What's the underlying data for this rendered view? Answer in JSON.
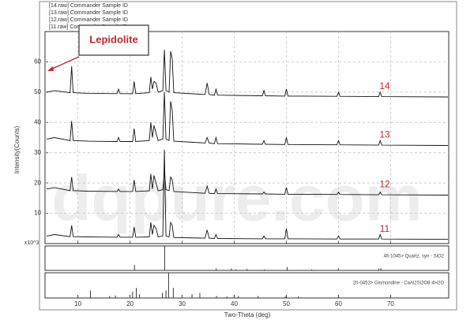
{
  "chart_data": {
    "type": "line",
    "x_label": "Two-Theta (deg)",
    "y_label": "Intensity(Counts)",
    "y_unit_label": "x10^3",
    "annotation": "Lepidolite",
    "watermark": "dqpure.com",
    "xlim": [
      4,
      81
    ],
    "ylim": [
      0,
      70
    ],
    "xticks": [
      10,
      20,
      30,
      40,
      50,
      60,
      70
    ],
    "yticks": [
      10,
      20,
      30,
      40,
      50,
      60
    ],
    "grid": true,
    "x": [
      4,
      5.5,
      8.5,
      8.8,
      9.1,
      12,
      17.5,
      17.8,
      18.1,
      20.5,
      20.8,
      21.1,
      23.7,
      24.0,
      24.3,
      24.6,
      25.0,
      25.4,
      26.3,
      26.6,
      26.9,
      27.5,
      27.8,
      28.1,
      28.4,
      34.4,
      34.8,
      35.2,
      36.2,
      36.5,
      36.8,
      45.4,
      45.7,
      46.0,
      49.7,
      50.0,
      50.3,
      59.7,
      60.0,
      60.3,
      67.7,
      68.0,
      68.3,
      81
    ],
    "series": [
      {
        "name": "14",
        "legend_label": "[14.raw] Commander Sample ID",
        "color": "#111111",
        "values": [
          50,
          50.5,
          49.8,
          58.5,
          49.8,
          49.6,
          49.5,
          51,
          49.5,
          49.5,
          53.5,
          49.5,
          49.8,
          55,
          51,
          53.5,
          53,
          50,
          50.5,
          64,
          50.5,
          50,
          63.5,
          61,
          49.8,
          49.2,
          53,
          49.2,
          49,
          51,
          49,
          48.8,
          50.5,
          48.8,
          48.7,
          51,
          48.7,
          48.6,
          50,
          48.6,
          48.5,
          50,
          48.5,
          48.4
        ]
      },
      {
        "name": "13",
        "legend_label": "[13.raw] Commander Sample ID",
        "color": "#111111",
        "values": [
          34.5,
          35,
          34,
          40.5,
          34,
          33.8,
          33.7,
          35,
          33.7,
          33.7,
          38,
          33.7,
          34,
          40,
          35,
          39,
          36.5,
          34,
          34.5,
          50,
          34.5,
          34,
          47,
          44,
          33.8,
          33.2,
          35,
          33.2,
          33,
          35,
          33,
          32.8,
          34,
          32.8,
          32.7,
          35,
          32.7,
          32.6,
          34,
          32.6,
          32.5,
          34,
          32.5,
          32.4
        ]
      },
      {
        "name": "12",
        "legend_label": "[12.raw] Commander Sample ID",
        "color": "#111111",
        "values": [
          18,
          18.5,
          17.5,
          22,
          17.5,
          17.3,
          17.2,
          18,
          17.2,
          17.2,
          21,
          17.2,
          17.4,
          23,
          18,
          22.5,
          20,
          17.4,
          17.8,
          24,
          17.8,
          17.5,
          22,
          21,
          17.2,
          16.6,
          19,
          16.6,
          16.5,
          18,
          16.5,
          16.4,
          17,
          16.4,
          16.3,
          18.5,
          16.3,
          16.2,
          17,
          16.2,
          16.1,
          17,
          16.1,
          16
        ]
      },
      {
        "name": "11",
        "legend_label": "[11.raw] Commander Sample ID",
        "color": "#111111",
        "values": [
          2.5,
          3,
          2.3,
          6,
          2.3,
          2.2,
          2.1,
          3,
          2.1,
          2.1,
          5.5,
          2.1,
          2.2,
          7,
          3,
          6,
          5,
          2.2,
          2.5,
          31,
          2.5,
          2.2,
          7,
          6,
          2,
          1.8,
          4.5,
          1.8,
          1.7,
          3,
          1.7,
          1.6,
          2.5,
          1.6,
          1.6,
          5,
          1.6,
          1.5,
          2.5,
          1.5,
          1.5,
          3,
          1.5,
          1.4
        ]
      }
    ],
    "reference_patterns": [
      {
        "name": "46-1045> Quartz, syn - SiO2",
        "ylim": [
          0,
          100
        ],
        "positions": [
          20.86,
          26.64,
          36.54,
          39.46,
          40.29,
          42.45,
          45.79,
          50.14,
          54.87,
          59.96,
          67.74,
          68.14
        ],
        "intensities": [
          22,
          100,
          8,
          8,
          4,
          6,
          4,
          14,
          4,
          9,
          7,
          9
        ]
      },
      {
        "name": "20-0452> Gismondine - CaAl2Si2O8·4H2O",
        "ylim": [
          0,
          100
        ],
        "positions": [
          12.4,
          16.1,
          17.2,
          20.5,
          21.2,
          21.8,
          26.2,
          26.9,
          27.4,
          28.3,
          31.9,
          33.4,
          36.6,
          38.6,
          40.8,
          44.6,
          49.8,
          52.3
        ],
        "intensities": [
          30,
          8,
          10,
          25,
          40,
          15,
          20,
          30,
          100,
          40,
          15,
          20,
          8,
          6,
          8,
          8,
          6,
          6
        ]
      }
    ]
  }
}
